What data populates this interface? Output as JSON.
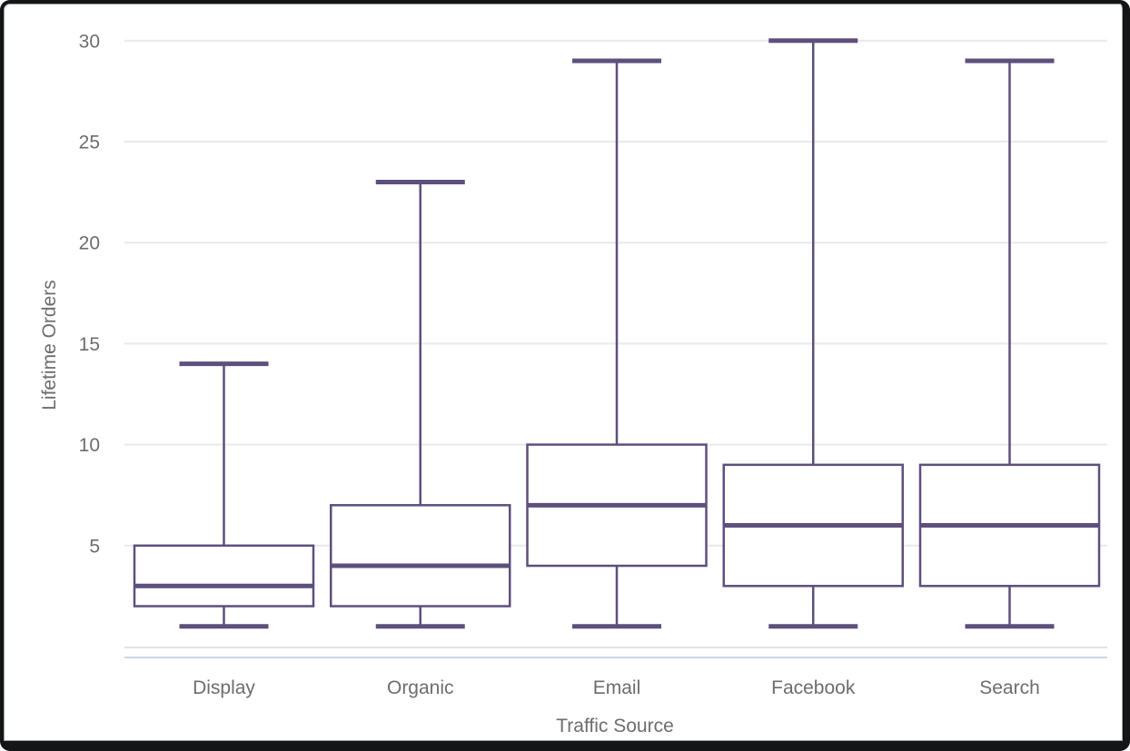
{
  "chart_data": {
    "type": "boxplot",
    "title": "",
    "xlabel": "Traffic Source",
    "ylabel": "Lifetime Orders",
    "categories": [
      "Display",
      "Organic",
      "Email",
      "Facebook",
      "Search"
    ],
    "series": [
      {
        "name": "Display",
        "min": 1,
        "q1": 2,
        "median": 3,
        "q3": 5,
        "max": 14
      },
      {
        "name": "Organic",
        "min": 1,
        "q1": 2,
        "median": 4,
        "q3": 7,
        "max": 23
      },
      {
        "name": "Email",
        "min": 1,
        "q1": 4,
        "median": 7,
        "q3": 10,
        "max": 29
      },
      {
        "name": "Facebook",
        "min": 1,
        "q1": 3,
        "median": 6,
        "q3": 9,
        "max": 30
      },
      {
        "name": "Search",
        "min": 1,
        "q1": 3,
        "median": 6,
        "q3": 9,
        "max": 29
      }
    ],
    "yticks": [
      5,
      10,
      15,
      20,
      25,
      30
    ],
    "ylim": [
      0,
      31
    ],
    "grid": true,
    "legend": "none",
    "colors": {
      "box_stroke": "#5e4f7d",
      "box_fill": "#ffffff",
      "gridline": "#e9e9e9",
      "axis_line": "#e3e3e3",
      "axis_accent_line": "#ccd5e9",
      "tick_text": "#6d6d6d"
    }
  }
}
